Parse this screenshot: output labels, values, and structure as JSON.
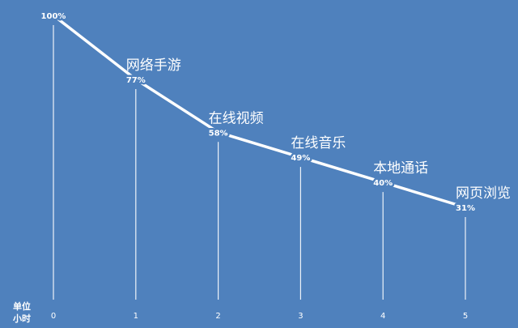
{
  "chart_data": {
    "type": "line",
    "x": [
      0,
      1,
      2,
      3,
      4,
      5
    ],
    "values": [
      100,
      77,
      58,
      49,
      40,
      31
    ],
    "value_labels": [
      "100%",
      "77%",
      "58%",
      "49%",
      "40%",
      "31%"
    ],
    "point_names": [
      "",
      "网络手游",
      "在线视频",
      "在线音乐",
      "本地通话",
      "网页浏览"
    ],
    "x_tick_labels": [
      "0",
      "1",
      "2",
      "3",
      "4",
      "5"
    ],
    "x_unit_label": [
      "单位",
      "小时"
    ],
    "ylim": [
      0,
      100
    ],
    "grid": false,
    "drop_lines": true,
    "colors": {
      "background": "#4F81BD",
      "line": "#FFFFFF",
      "text": "#FFFFFF"
    }
  }
}
